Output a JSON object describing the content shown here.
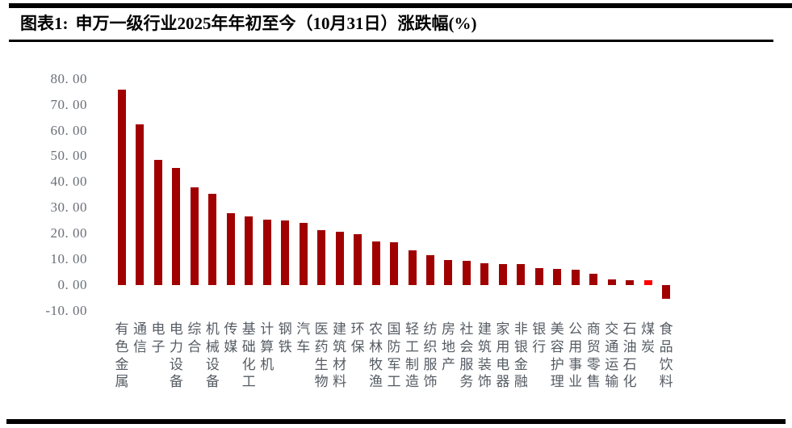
{
  "figure": {
    "label": "图表1:",
    "title": "申万一级行业2025年年初至今（10月31日）涨跌幅(%)"
  },
  "chart_data": {
    "type": "bar",
    "title": "申万一级行业2025年年初至今（10月31日）涨跌幅(%)",
    "categories": [
      "有色金属",
      "通信",
      "电子",
      "电力设备",
      "综合",
      "机械设备",
      "传媒",
      "基础化工",
      "计算机",
      "钢铁",
      "汽车",
      "医药生物",
      "建筑材料",
      "环保",
      "农林牧渔",
      "国防军工",
      "轻工制造",
      "纺织服饰",
      "房地产",
      "社会服务",
      "建筑装饰",
      "家用电器",
      "非银金融",
      "银行",
      "美容护理",
      "公用事业",
      "商贸零售",
      "交通运输",
      "石油石化",
      "煤炭",
      "食品饮料"
    ],
    "values": [
      76.0,
      62.4,
      48.5,
      45.5,
      37.8,
      35.3,
      27.8,
      26.5,
      25.4,
      25.1,
      24.0,
      21.4,
      20.7,
      19.8,
      16.8,
      16.6,
      13.4,
      11.6,
      9.6,
      9.4,
      8.5,
      8.1,
      8.0,
      6.6,
      6.3,
      6.1,
      4.5,
      2.2,
      2.0,
      1.9,
      -5.2
    ],
    "unit": "%",
    "highlight_category": "煤炭",
    "highlight_index": 29,
    "colors": {
      "bar": "#A00000",
      "highlight": "#FF0000"
    },
    "xlabel": "",
    "ylabel": "",
    "ylim": [
      -10,
      80
    ],
    "y_tick_values": [
      80,
      70,
      60,
      50,
      40,
      30,
      20,
      10,
      0,
      -10
    ],
    "y_tick_labels": [
      "80. 00",
      "70. 00",
      "60. 00",
      "50. 00",
      "40. 00",
      "30. 00",
      "20. 00",
      "10. 00",
      "0. 00",
      "-10. 00"
    ],
    "grid": false,
    "legend": false,
    "x_label_orientation": "vertical-stacked"
  }
}
